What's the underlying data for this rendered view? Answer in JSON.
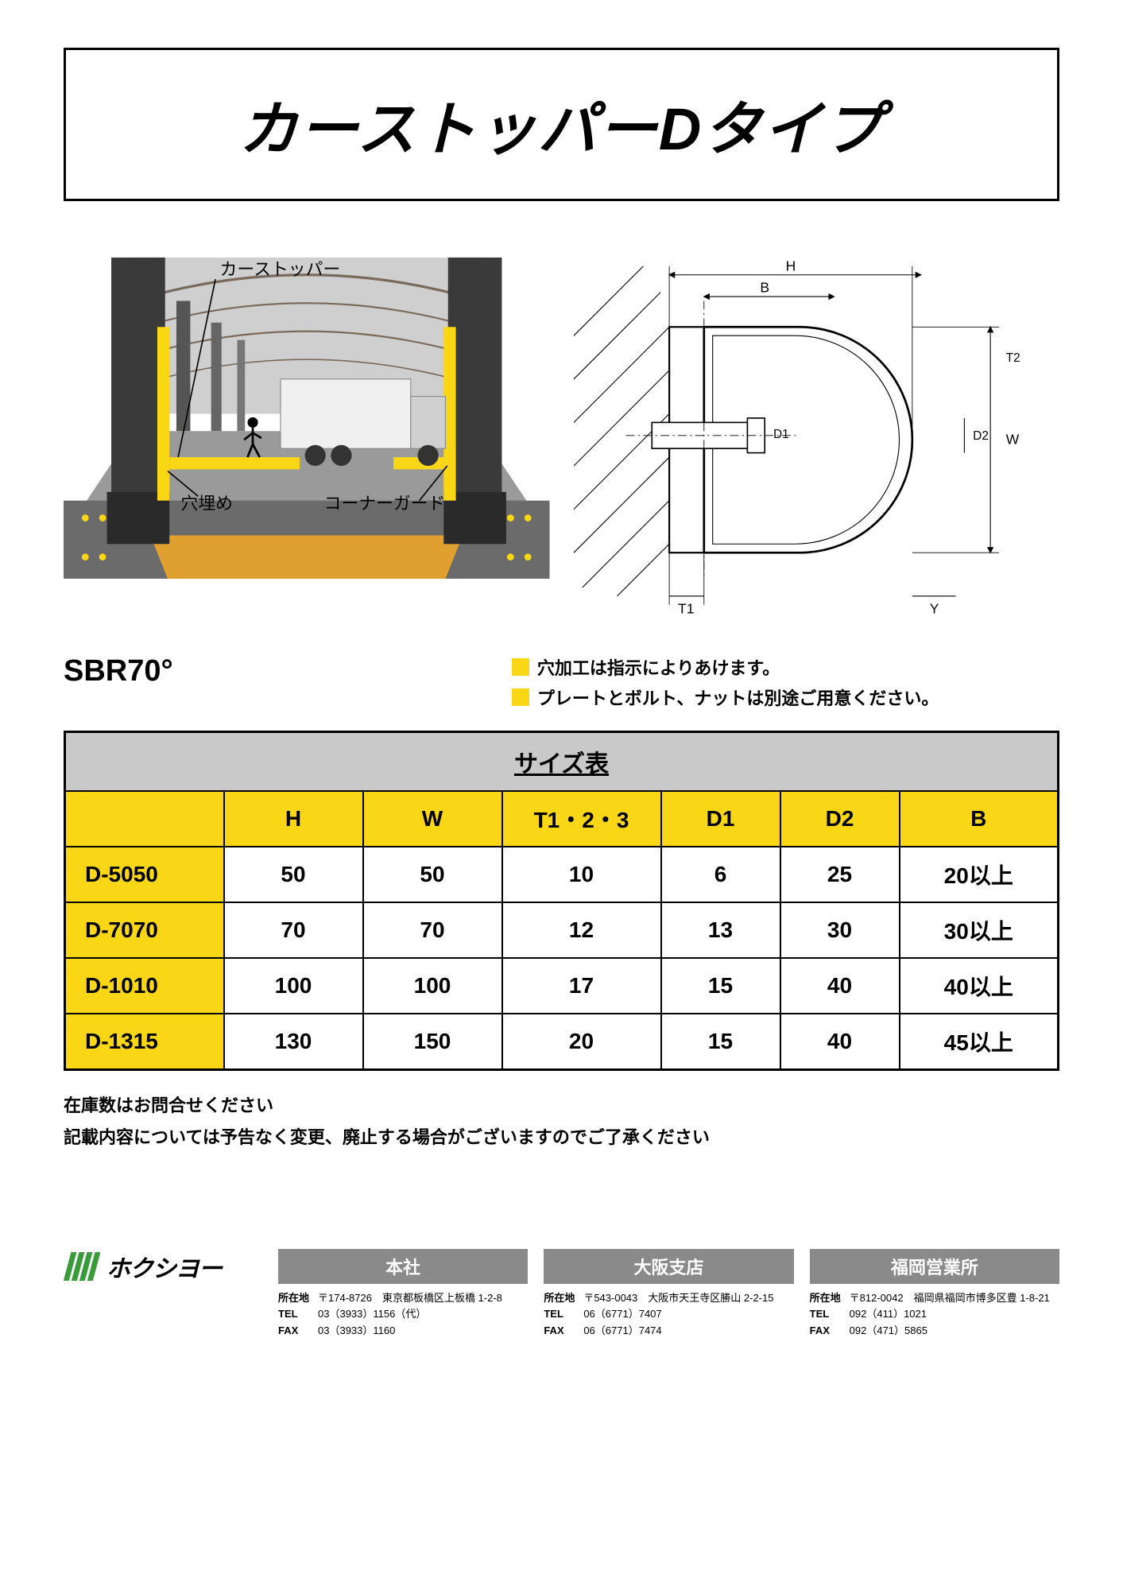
{
  "title": "カーストッパーDタイプ",
  "illustration_labels": {
    "car_stopper": "カーストッパー",
    "ana_ume": "穴埋め",
    "corner_guard": "コーナーガード"
  },
  "tech_drawing_labels": {
    "H": "H",
    "B": "B",
    "T1": "T1",
    "D1": "D1",
    "D2": "D2",
    "W": "W",
    "Y": "Y",
    "T2": "T2"
  },
  "sbr_label": "SBR70°",
  "notes": {
    "marker_color": "#f9d616",
    "line1": "穴加工は指示によりあけます。",
    "line2": "プレートとボルト、ナットは別途ご用意ください。"
  },
  "table": {
    "title": "サイズ表",
    "title_bg": "#c9c9c9",
    "header_bg": "#f9d616",
    "row_label_bg": "#f9d616",
    "cell_bg": "#ffffff",
    "border_color": "#000000",
    "columns": [
      "",
      "H",
      "W",
      "T1・2・3",
      "D1",
      "D2",
      "B"
    ],
    "col_widths_pct": [
      16,
      14,
      14,
      16,
      12,
      12,
      16
    ],
    "rows": [
      {
        "label": "D-5050",
        "values": [
          "50",
          "50",
          "10",
          "6",
          "25",
          "20以上"
        ]
      },
      {
        "label": "D-7070",
        "values": [
          "70",
          "70",
          "12",
          "13",
          "30",
          "30以上"
        ]
      },
      {
        "label": "D-1010",
        "values": [
          "100",
          "100",
          "17",
          "15",
          "40",
          "40以上"
        ]
      },
      {
        "label": "D-1315",
        "values": [
          "130",
          "150",
          "20",
          "15",
          "40",
          "45以上"
        ]
      }
    ]
  },
  "below_notes": {
    "line1": "在庫数はお問合せください",
    "line2": "記載内容については予告なく変更、廃止する場合がございますのでご了承ください"
  },
  "company": {
    "logo_color": "#3a9b3a",
    "name": "ホクシヨー"
  },
  "offices": [
    {
      "name": "本社",
      "header_bg": "#8a8a8a",
      "address_label": "所在地",
      "address": "〒174-8726　東京都板橋区上板橋 1-2-8",
      "tel_label": "TEL",
      "tel": "03（3933）1156（代）",
      "fax_label": "FAX",
      "fax": "03（3933）1160"
    },
    {
      "name": "大阪支店",
      "header_bg": "#8a8a8a",
      "address_label": "所在地",
      "address": "〒543-0043　大阪市天王寺区勝山 2-2-15",
      "tel_label": "TEL",
      "tel": "06（6771）7407",
      "fax_label": "FAX",
      "fax": "06（6771）7474"
    },
    {
      "name": "福岡営業所",
      "header_bg": "#8a8a8a",
      "address_label": "所在地",
      "address": "〒812-0042　福岡県福岡市博多区豊 1-8-21",
      "tel_label": "TEL",
      "tel": "092（411）1021",
      "fax_label": "FAX",
      "fax": "092（471）5865"
    }
  ],
  "illustration_colors": {
    "pillar": "#3a3a3a",
    "guard_yellow": "#f9d616",
    "dock_gray": "#6b6b6b",
    "floor_gray": "#9a9a9a",
    "ramp": "#e0a030",
    "roof_line": "#7a6a5a",
    "truck_body": "#f0f0f0",
    "truck_cab": "#d0d0d0",
    "bg": "#cfcfcf"
  }
}
